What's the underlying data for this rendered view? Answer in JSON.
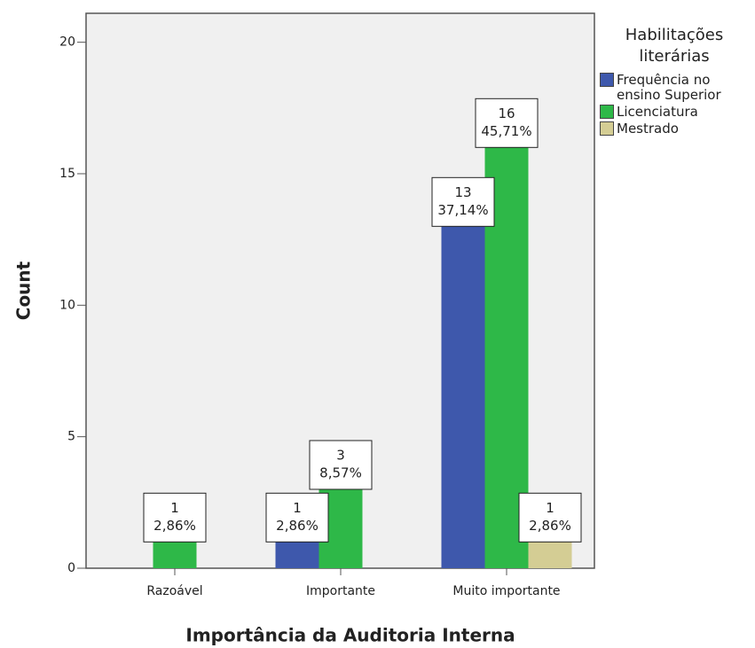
{
  "chart_data": {
    "type": "bar",
    "x_label": "Importância da Auditoria Interna",
    "y_label": "Count",
    "legend_title": "Habilitações literárias",
    "legend_position": "right",
    "categories": [
      "Razoável",
      "Importante",
      "Muito importante"
    ],
    "series": [
      {
        "name": "Frequência no ensino Superior",
        "color": "#3e58ac",
        "values": [
          null,
          1,
          13
        ],
        "percentage_labels": [
          null,
          "2,86%",
          "37,14%"
        ]
      },
      {
        "name": "Licenciatura",
        "color": "#2eb848",
        "values": [
          1,
          3,
          16
        ],
        "percentage_labels": [
          "2,86%",
          "8,57%",
          "45,71%"
        ]
      },
      {
        "name": "Mestrado",
        "color": "#d4cd94",
        "values": [
          null,
          null,
          1
        ],
        "percentage_labels": [
          null,
          null,
          "2,86%"
        ]
      }
    ],
    "ylim": [
      0,
      21.1
    ],
    "yticks": [
      0,
      5,
      10,
      15,
      20
    ],
    "grid": false
  }
}
